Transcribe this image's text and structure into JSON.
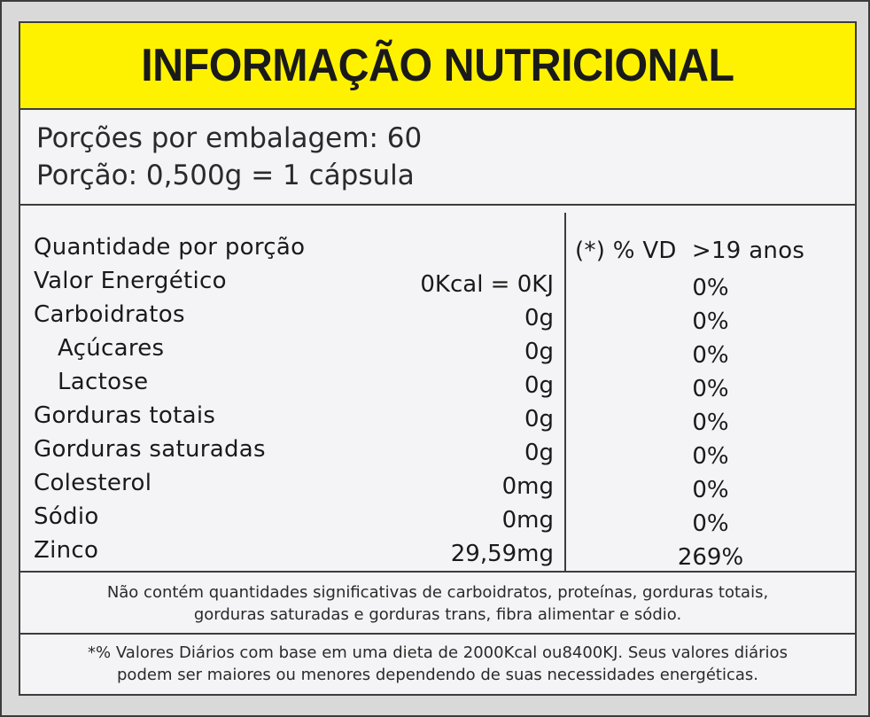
{
  "title": "INFORMAÇÃO NUTRICIONAL",
  "serving": {
    "servings_per_package": "Porções por embalagem: 60",
    "serving_size": "Porção: 0,500g = 1 cápsula"
  },
  "table": {
    "header_left": "Quantidade por porção",
    "header_right": "(*) % VD  >19 anos",
    "rows": [
      {
        "name": "Valor Energético",
        "amount": "0Kcal = 0KJ",
        "vd": "0%"
      },
      {
        "name": "Carboidratos",
        "amount": "0g",
        "vd": "0%"
      },
      {
        "name": "Açúcares",
        "amount": "0g",
        "vd": "0%"
      },
      {
        "name": "Lactose",
        "amount": "0g",
        "vd": "0%"
      },
      {
        "name": "Gorduras totais",
        "amount": "0g",
        "vd": "0%"
      },
      {
        "name": "Gorduras saturadas",
        "amount": "0g",
        "vd": "0%"
      },
      {
        "name": "Colesterol",
        "amount": "0mg",
        "vd": "0%"
      },
      {
        "name": "Sódio",
        "amount": "0mg",
        "vd": "0%"
      },
      {
        "name": "Zinco",
        "amount": "29,59mg",
        "vd": "269%"
      }
    ]
  },
  "note": {
    "line1": "Não contém quantidades significativas de carboidratos, proteínas, gorduras totais,",
    "line2": "gorduras saturadas e gorduras trans, fibra alimentar e sódio."
  },
  "footnote": {
    "line1": "*% Valores Diários com base em uma dieta de 2000Kcal ou8400KJ. Seus valores diários",
    "line2": "podem ser maiores ou menores dependendo de suas necessidades energéticas."
  },
  "colors": {
    "title_background": "#fff200",
    "border": "#3c3c3c"
  }
}
